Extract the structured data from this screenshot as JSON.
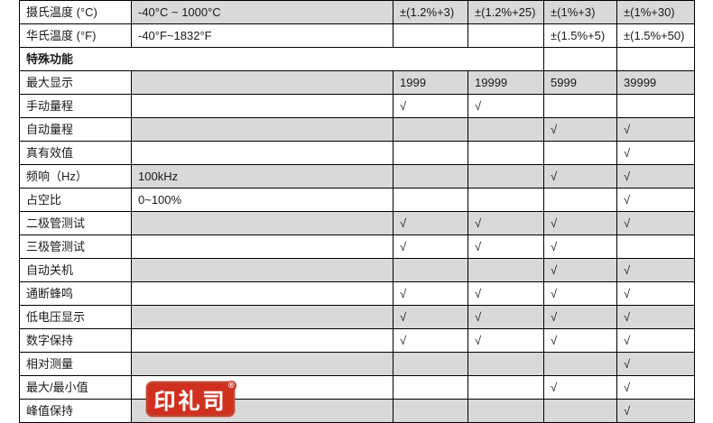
{
  "colors": {
    "row_shade": "#d9d9d9",
    "border": "#000000",
    "text": "#1a1a1a",
    "stamp_red": "#d0301f",
    "stamp_text": "#ffffff"
  },
  "check_mark": "√",
  "stamp": {
    "text": "印礼司",
    "registered": "®"
  },
  "table": {
    "columns": [
      "label",
      "range",
      "model1",
      "model2",
      "model3",
      "model4"
    ],
    "rows": [
      {
        "label": "摄氏温度 (°C)",
        "section": false,
        "shaded": true,
        "cells": [
          "-40°C ~ 1000°C",
          "±(1.2%+3)",
          "±(1.2%+25)",
          "±(1%+3)",
          "±(1%+30)"
        ]
      },
      {
        "label": "华氏温度 (°F)",
        "section": false,
        "shaded": false,
        "cells": [
          "-40°F~1832°F",
          "",
          "",
          "±(1.5%+5)",
          "±(1.5%+50)"
        ]
      },
      {
        "label": "特殊功能",
        "section": true,
        "shaded": false,
        "cells": [
          "",
          ""
        ]
      },
      {
        "label": "最大显示",
        "section": false,
        "shaded": true,
        "cells": [
          "",
          "1999",
          "19999",
          "5999",
          "39999"
        ]
      },
      {
        "label": "手动量程",
        "section": false,
        "shaded": false,
        "cells": [
          "",
          "√",
          "√",
          "",
          ""
        ]
      },
      {
        "label": "自动量程",
        "section": false,
        "shaded": true,
        "cells": [
          "",
          "",
          "",
          "√",
          "√"
        ]
      },
      {
        "label": "真有效值",
        "section": false,
        "shaded": false,
        "cells": [
          "",
          "",
          "",
          "",
          "√"
        ]
      },
      {
        "label": "频响（Hz）",
        "section": false,
        "shaded": true,
        "cells": [
          "100kHz",
          "",
          "",
          "√",
          "√"
        ]
      },
      {
        "label": "占空比",
        "section": false,
        "shaded": false,
        "cells": [
          "0~100%",
          "",
          "",
          "",
          "√"
        ]
      },
      {
        "label": "二极管测试",
        "section": false,
        "shaded": true,
        "cells": [
          "",
          "√",
          "√",
          "√",
          "√"
        ]
      },
      {
        "label": "三极管测试",
        "section": false,
        "shaded": false,
        "cells": [
          "",
          "√",
          "√",
          "√",
          ""
        ]
      },
      {
        "label": "自动关机",
        "section": false,
        "shaded": true,
        "cells": [
          "",
          "",
          "",
          "√",
          "√"
        ]
      },
      {
        "label": "通断蜂鸣",
        "section": false,
        "shaded": false,
        "cells": [
          "",
          "√",
          "√",
          "√",
          "√"
        ]
      },
      {
        "label": "低电压显示",
        "section": false,
        "shaded": true,
        "cells": [
          "",
          "√",
          "√",
          "√",
          "√"
        ]
      },
      {
        "label": "数字保持",
        "section": false,
        "shaded": false,
        "cells": [
          "",
          "√",
          "√",
          "√",
          "√"
        ]
      },
      {
        "label": "相对测量",
        "section": false,
        "shaded": true,
        "cells": [
          "",
          "",
          "",
          "",
          "√"
        ]
      },
      {
        "label": "最大/最小值",
        "section": false,
        "shaded": false,
        "cells": [
          "",
          "",
          "",
          "√",
          "√"
        ]
      },
      {
        "label": "峰值保持",
        "section": false,
        "shaded": true,
        "cells": [
          "",
          "",
          "",
          "",
          "√"
        ]
      }
    ]
  }
}
